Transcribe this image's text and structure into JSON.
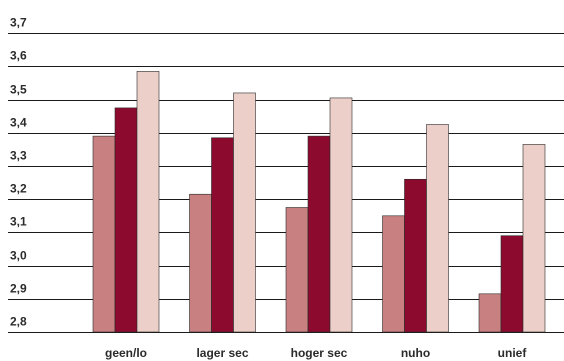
{
  "chart_data": {
    "type": "bar",
    "title": "",
    "xlabel": "",
    "ylabel": "",
    "categories": [
      "geen/lo",
      "lager sec",
      "hoger sec",
      "nuho",
      "unief"
    ],
    "series": [
      {
        "values": [
          3.39,
          3.215,
          3.175,
          3.15,
          2.915
        ],
        "color": "#c88080"
      },
      {
        "values": [
          3.475,
          3.385,
          3.39,
          3.26,
          3.09
        ],
        "color": "#8b0a2e"
      },
      {
        "values": [
          3.585,
          3.52,
          3.505,
          3.425,
          3.365
        ],
        "color": "#eccfc9"
      }
    ],
    "ylim": [
      2.8,
      3.8
    ],
    "y_tick_values": [
      2.8,
      2.9,
      3.0,
      3.1,
      3.2,
      3.3,
      3.4,
      3.5,
      3.6,
      3.7
    ],
    "y_tick_labels": [
      "2,8",
      "2,9",
      "3,0",
      "3,1",
      "3,2",
      "3,3",
      "3,4",
      "3,5",
      "3,6",
      "3,7"
    ],
    "grid": true,
    "legend": "none"
  }
}
